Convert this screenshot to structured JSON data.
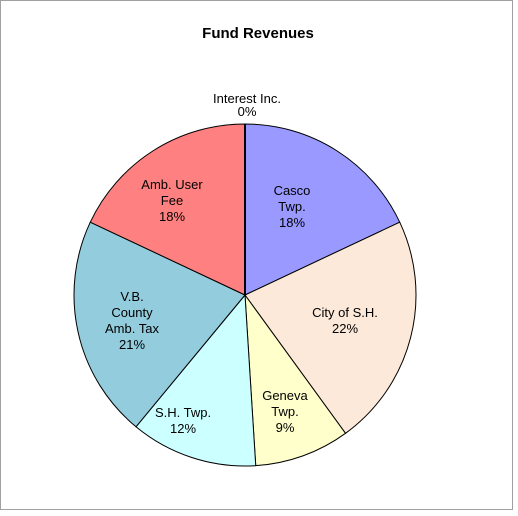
{
  "chart_data": {
    "type": "pie",
    "title": "Fund Revenues",
    "categories": [
      [
        "Casco",
        "Twp."
      ],
      [
        "City of S.H."
      ],
      [
        "Geneva",
        "Twp."
      ],
      [
        "S.H. Twp."
      ],
      [
        "V.B.",
        "County",
        "Amb. Tax"
      ],
      [
        "Amb. User",
        "Fee"
      ],
      [
        "Interest Inc."
      ]
    ],
    "values": [
      18,
      22,
      9,
      12,
      21,
      18,
      0
    ],
    "value_labels": [
      "18%",
      "22%",
      "9%",
      "12%",
      "21%",
      "18%",
      "0%"
    ],
    "colors": [
      "#9999ff",
      "#fde9d9",
      "#ffffcc",
      "#ccffff",
      "#93cddd",
      "#ff8080",
      "#000000"
    ]
  }
}
